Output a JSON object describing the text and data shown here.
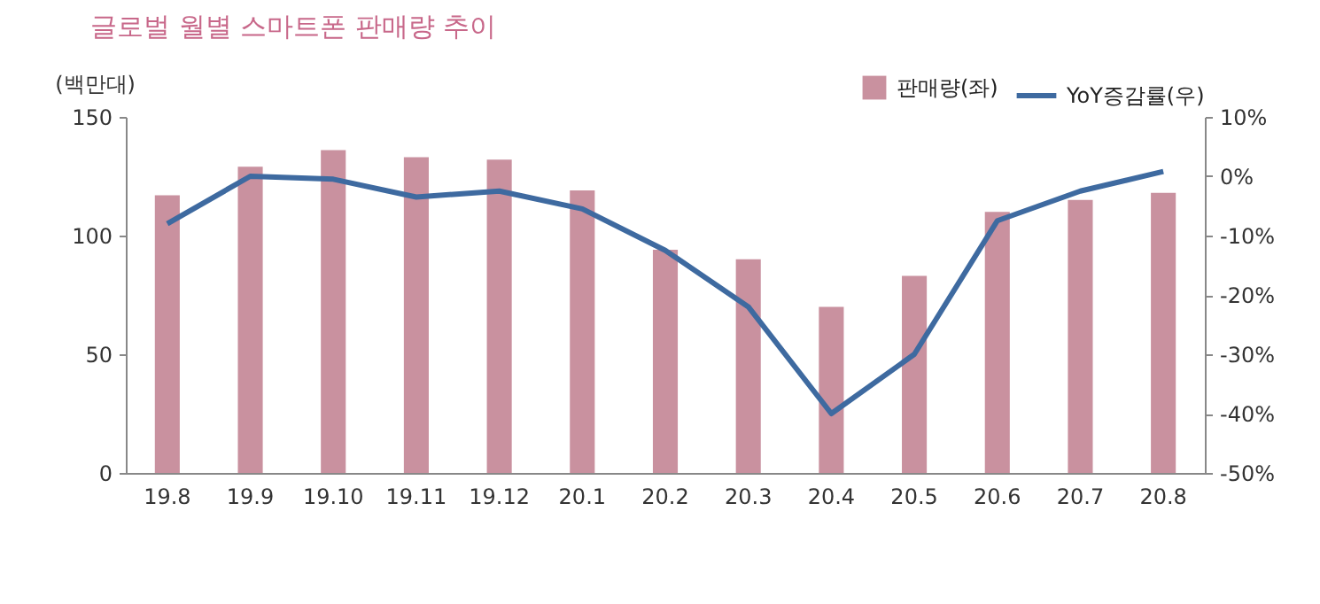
{
  "chart_data": {
    "type": "bar",
    "title": "글로벌 월별 스마트폰 판매량 추이",
    "ylabel": "(백만대)",
    "categories": [
      "19.8",
      "19.9",
      "19.10",
      "19.11",
      "19.12",
      "20.1",
      "20.2",
      "20.3",
      "20.4",
      "20.5",
      "20.6",
      "20.7",
      "20.8"
    ],
    "series": [
      {
        "name": "판매량(좌)",
        "color": "#c9919f",
        "values": [
          117,
          129,
          136,
          133,
          132,
          119,
          94,
          90,
          70,
          83,
          110,
          115,
          118
        ]
      },
      {
        "name": "YoY증감률(우)",
        "type": "line",
        "axis": "y2",
        "color": "#3e6aa0",
        "values": [
          -8,
          0,
          -0.5,
          -3.5,
          -2.5,
          -5.5,
          -12.5,
          -22,
          -40,
          -30,
          -7.5,
          -2.5,
          0.8
        ]
      }
    ],
    "ylim": [
      0,
      150
    ],
    "yticks": [
      0,
      50,
      100,
      150
    ],
    "y2lim": [
      -50,
      10
    ],
    "y2ticks": [
      {
        "value": -50,
        "label": "-50%"
      },
      {
        "value": -40,
        "label": "-40%"
      },
      {
        "value": -30,
        "label": "-30%"
      },
      {
        "value": -20,
        "label": "-20%"
      },
      {
        "value": -10,
        "label": "-10%"
      },
      {
        "value": 0,
        "label": "0%"
      },
      {
        "value": 10,
        "label": "10%"
      }
    ],
    "grid": false,
    "legend": "top right",
    "marker": "none",
    "line_style": "solid"
  }
}
